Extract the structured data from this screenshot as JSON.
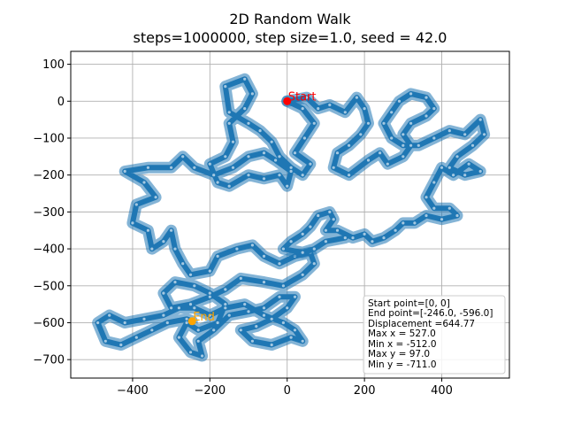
{
  "chart_data": {
    "type": "scatter",
    "title": "2D Random Walk",
    "subtitle": "steps=1000000, step size=1.0, seed = 42.0",
    "xlabel": "",
    "ylabel": "",
    "xlim": [
      -560,
      575
    ],
    "ylim": [
      -750,
      135
    ],
    "xticks": [
      -400,
      -200,
      0,
      200,
      400
    ],
    "yticks": [
      100,
      0,
      -100,
      -200,
      -300,
      -400,
      -500,
      -600,
      -700
    ],
    "grid": true,
    "colors": {
      "walk": "#1f77b4",
      "start": "#ff0000",
      "end": "#ffa500",
      "grid": "#b0b0b0"
    },
    "start": {
      "x": 0,
      "y": 0,
      "label": "Start"
    },
    "end": {
      "x": -246,
      "y": -596,
      "label": "End"
    },
    "stats_box_placement": "bottom-right",
    "stats": [
      "Start point=[0, 0]",
      "End point=[-246.0, -596.0]",
      "Displacement =644.77",
      "Max x = 527.0",
      "Min x = -512.0",
      "Max y = 97.0",
      "Min y = -711.0"
    ],
    "series": [
      {
        "values": [
          [
            0,
            0
          ],
          [
            40,
            -20
          ],
          [
            70,
            -60
          ],
          [
            45,
            -100
          ],
          [
            20,
            -140
          ],
          [
            60,
            -170
          ],
          [
            40,
            -200
          ],
          [
            10,
            -180
          ],
          [
            -20,
            -150
          ],
          [
            -40,
            -110
          ],
          [
            -70,
            -80
          ],
          [
            -100,
            -60
          ],
          [
            -150,
            -30
          ],
          [
            -160,
            40
          ],
          [
            -110,
            60
          ],
          [
            -90,
            20
          ],
          [
            -110,
            -20
          ],
          [
            -150,
            -60
          ],
          [
            -140,
            -110
          ],
          [
            -160,
            -150
          ],
          [
            -200,
            -170
          ],
          [
            -180,
            -220
          ],
          [
            -150,
            -230
          ],
          [
            -100,
            -200
          ],
          [
            -60,
            -210
          ],
          [
            -20,
            -200
          ],
          [
            0,
            -230
          ],
          [
            10,
            -190
          ],
          [
            -30,
            -160
          ],
          [
            -60,
            -140
          ],
          [
            -100,
            -150
          ],
          [
            -140,
            -180
          ],
          [
            -190,
            -200
          ],
          [
            -240,
            -180
          ],
          [
            -270,
            -150
          ],
          [
            -300,
            -180
          ],
          [
            -360,
            -180
          ],
          [
            -420,
            -190
          ],
          [
            -370,
            -220
          ],
          [
            -340,
            -260
          ],
          [
            -390,
            -280
          ],
          [
            -400,
            -330
          ],
          [
            -360,
            -350
          ],
          [
            -350,
            -400
          ],
          [
            -320,
            -380
          ],
          [
            -300,
            -350
          ],
          [
            -290,
            -400
          ],
          [
            -270,
            -440
          ],
          [
            -250,
            -470
          ],
          [
            -200,
            -460
          ],
          [
            -180,
            -420
          ],
          [
            -130,
            -400
          ],
          [
            -90,
            -390
          ],
          [
            -60,
            -420
          ],
          [
            -20,
            -440
          ],
          [
            20,
            -420
          ],
          [
            60,
            -410
          ],
          [
            70,
            -440
          ],
          [
            40,
            -470
          ],
          [
            -10,
            -500
          ],
          [
            -60,
            -490
          ],
          [
            -120,
            -480
          ],
          [
            -160,
            -510
          ],
          [
            -200,
            -530
          ],
          [
            -250,
            -550
          ],
          [
            -300,
            -560
          ],
          [
            -320,
            -520
          ],
          [
            -290,
            -490
          ],
          [
            -240,
            -500
          ],
          [
            -200,
            -520
          ],
          [
            -160,
            -550
          ],
          [
            -180,
            -600
          ],
          [
            -230,
            -620
          ],
          [
            -260,
            -600
          ],
          [
            -280,
            -640
          ],
          [
            -250,
            -680
          ],
          [
            -220,
            -690
          ],
          [
            -230,
            -650
          ],
          [
            -190,
            -620
          ],
          [
            -150,
            -580
          ],
          [
            -100,
            -570
          ],
          [
            -60,
            -560
          ],
          [
            -20,
            -530
          ],
          [
            20,
            -530
          ],
          [
            0,
            -560
          ],
          [
            -40,
            -590
          ],
          [
            -80,
            -610
          ],
          [
            -120,
            -620
          ],
          [
            -90,
            -650
          ],
          [
            -40,
            -660
          ],
          [
            10,
            -640
          ],
          [
            40,
            -650
          ],
          [
            20,
            -620
          ],
          [
            -10,
            -600
          ],
          [
            -60,
            -580
          ],
          [
            -110,
            -550
          ],
          [
            -160,
            -560
          ],
          [
            -200,
            -580
          ],
          [
            -240,
            -560
          ],
          [
            -280,
            -560
          ],
          [
            -320,
            -580
          ],
          [
            -370,
            -590
          ],
          [
            -420,
            -600
          ],
          [
            -460,
            -580
          ],
          [
            -490,
            -600
          ],
          [
            -470,
            -650
          ],
          [
            -430,
            -660
          ],
          [
            -390,
            -640
          ],
          [
            -350,
            -620
          ],
          [
            -310,
            -600
          ],
          [
            -260,
            -590
          ],
          [
            -246,
            -596
          ]
        ]
      },
      {
        "values": [
          [
            0,
            0
          ],
          [
            50,
            10
          ],
          [
            80,
            -20
          ],
          [
            110,
            -10
          ],
          [
            150,
            -30
          ],
          [
            180,
            10
          ],
          [
            200,
            -20
          ],
          [
            210,
            -60
          ],
          [
            190,
            -90
          ],
          [
            160,
            -120
          ],
          [
            130,
            -140
          ],
          [
            120,
            -180
          ],
          [
            160,
            -200
          ],
          [
            210,
            -160
          ],
          [
            240,
            -140
          ],
          [
            260,
            -170
          ],
          [
            300,
            -150
          ],
          [
            320,
            -120
          ],
          [
            300,
            -90
          ],
          [
            320,
            -60
          ],
          [
            360,
            -40
          ],
          [
            380,
            -20
          ],
          [
            360,
            10
          ],
          [
            320,
            20
          ],
          [
            290,
            0
          ],
          [
            270,
            -30
          ],
          [
            250,
            -60
          ],
          [
            270,
            -100
          ],
          [
            300,
            -120
          ],
          [
            340,
            -120
          ],
          [
            380,
            -100
          ],
          [
            420,
            -80
          ],
          [
            460,
            -90
          ],
          [
            500,
            -50
          ],
          [
            510,
            -90
          ],
          [
            480,
            -120
          ],
          [
            440,
            -150
          ],
          [
            420,
            -180
          ],
          [
            460,
            -200
          ],
          [
            500,
            -190
          ],
          [
            470,
            -170
          ],
          [
            430,
            -200
          ],
          [
            400,
            -180
          ],
          [
            380,
            -220
          ],
          [
            360,
            -260
          ],
          [
            380,
            -290
          ],
          [
            420,
            -290
          ],
          [
            440,
            -310
          ],
          [
            400,
            -320
          ],
          [
            360,
            -310
          ],
          [
            330,
            -330
          ],
          [
            300,
            -330
          ],
          [
            280,
            -350
          ],
          [
            250,
            -370
          ],
          [
            220,
            -380
          ],
          [
            200,
            -360
          ],
          [
            170,
            -370
          ],
          [
            130,
            -350
          ],
          [
            100,
            -350
          ],
          [
            120,
            -320
          ],
          [
            110,
            -300
          ],
          [
            80,
            -310
          ],
          [
            60,
            -340
          ],
          [
            40,
            -360
          ],
          [
            10,
            -380
          ],
          [
            -10,
            -400
          ],
          [
            40,
            -410
          ],
          [
            70,
            -400
          ],
          [
            100,
            -380
          ],
          [
            150,
            -370
          ]
        ]
      }
    ]
  }
}
